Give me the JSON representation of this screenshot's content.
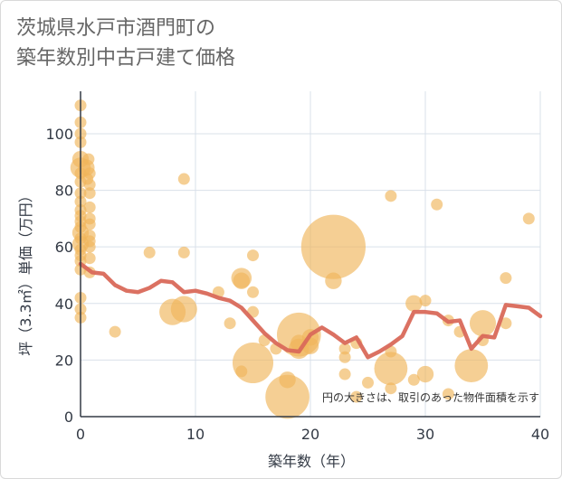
{
  "chart_data": {
    "type": "scatter",
    "title_lines": [
      "茨城県水戸市酒門町の",
      "築年数別中古戸建て価格"
    ],
    "xlabel": "築年数（年）",
    "ylabel": "坪（3.3㎡）単価（万円）",
    "xlim": [
      0,
      40
    ],
    "ylim": [
      0,
      115
    ],
    "xticks": [
      0,
      10,
      20,
      30,
      40
    ],
    "yticks": [
      0,
      20,
      40,
      60,
      80,
      100
    ],
    "note": "円の大きさは、取引のあった物件面積を示す",
    "colors": {
      "bubble": "#f0b55a",
      "line": "#d9695a",
      "grid": "#d9e0ea",
      "axis": "#333a45"
    },
    "scatter": [
      {
        "x": 0,
        "y": 110,
        "s": 1
      },
      {
        "x": 0,
        "y": 104,
        "s": 1
      },
      {
        "x": 0,
        "y": 100,
        "s": 1
      },
      {
        "x": 0,
        "y": 97,
        "s": 1
      },
      {
        "x": 0,
        "y": 91,
        "s": 2
      },
      {
        "x": 0,
        "y": 88,
        "s": 3
      },
      {
        "x": 0,
        "y": 86,
        "s": 1
      },
      {
        "x": 0,
        "y": 83,
        "s": 1
      },
      {
        "x": 0,
        "y": 79,
        "s": 1
      },
      {
        "x": 0,
        "y": 76,
        "s": 1
      },
      {
        "x": 0,
        "y": 73,
        "s": 1
      },
      {
        "x": 0,
        "y": 71,
        "s": 1
      },
      {
        "x": 0,
        "y": 69,
        "s": 1
      },
      {
        "x": 0,
        "y": 67,
        "s": 1
      },
      {
        "x": 0,
        "y": 65,
        "s": 2
      },
      {
        "x": 0,
        "y": 63,
        "s": 1
      },
      {
        "x": 0,
        "y": 61,
        "s": 2
      },
      {
        "x": 0,
        "y": 59,
        "s": 1
      },
      {
        "x": 0,
        "y": 57,
        "s": 1
      },
      {
        "x": 0,
        "y": 55,
        "s": 1
      },
      {
        "x": 0,
        "y": 52,
        "s": 1
      },
      {
        "x": 0,
        "y": 42,
        "s": 1
      },
      {
        "x": 0,
        "y": 38,
        "s": 1
      },
      {
        "x": 0,
        "y": 35,
        "s": 1
      },
      {
        "x": 0.5,
        "y": 88,
        "s": 2
      },
      {
        "x": 0.6,
        "y": 84,
        "s": 1
      },
      {
        "x": 0.7,
        "y": 91,
        "s": 1
      },
      {
        "x": 0.8,
        "y": 86,
        "s": 1
      },
      {
        "x": 0.8,
        "y": 82,
        "s": 1
      },
      {
        "x": 0.8,
        "y": 79,
        "s": 1
      },
      {
        "x": 0.8,
        "y": 74,
        "s": 1
      },
      {
        "x": 0.8,
        "y": 70,
        "s": 1
      },
      {
        "x": 0.8,
        "y": 68,
        "s": 1
      },
      {
        "x": 0.8,
        "y": 64,
        "s": 1
      },
      {
        "x": 0.8,
        "y": 62,
        "s": 1
      },
      {
        "x": 0.8,
        "y": 60,
        "s": 1
      },
      {
        "x": 0.8,
        "y": 56,
        "s": 1
      },
      {
        "x": 0.8,
        "y": 51,
        "s": 1
      },
      {
        "x": 3,
        "y": 30,
        "s": 1
      },
      {
        "x": 6,
        "y": 58,
        "s": 1
      },
      {
        "x": 8,
        "y": 37,
        "s": 5
      },
      {
        "x": 9,
        "y": 38,
        "s": 5
      },
      {
        "x": 9,
        "y": 84,
        "s": 1
      },
      {
        "x": 9,
        "y": 58,
        "s": 1
      },
      {
        "x": 12,
        "y": 44,
        "s": 1
      },
      {
        "x": 13,
        "y": 33,
        "s": 1
      },
      {
        "x": 14,
        "y": 49,
        "s": 3
      },
      {
        "x": 14,
        "y": 48,
        "s": 2
      },
      {
        "x": 14,
        "y": 16,
        "s": 1
      },
      {
        "x": 15,
        "y": 57,
        "s": 1
      },
      {
        "x": 15,
        "y": 44,
        "s": 1
      },
      {
        "x": 15,
        "y": 37,
        "s": 1
      },
      {
        "x": 15,
        "y": 19,
        "s": 12
      },
      {
        "x": 16,
        "y": 27,
        "s": 1
      },
      {
        "x": 17,
        "y": 24,
        "s": 1
      },
      {
        "x": 18,
        "y": 13,
        "s": 2
      },
      {
        "x": 18,
        "y": 7,
        "s": 14
      },
      {
        "x": 19,
        "y": 29,
        "s": 14
      },
      {
        "x": 19,
        "y": 24,
        "s": 3
      },
      {
        "x": 19,
        "y": 26,
        "s": 2
      },
      {
        "x": 20,
        "y": 25,
        "s": 2
      },
      {
        "x": 20,
        "y": 28,
        "s": 2
      },
      {
        "x": 22,
        "y": 60,
        "s": 30
      },
      {
        "x": 22,
        "y": 48,
        "s": 2
      },
      {
        "x": 23,
        "y": 24,
        "s": 1
      },
      {
        "x": 23,
        "y": 21,
        "s": 1
      },
      {
        "x": 23,
        "y": 15,
        "s": 1
      },
      {
        "x": 24,
        "y": 26,
        "s": 1
      },
      {
        "x": 24,
        "y": 7,
        "s": 1
      },
      {
        "x": 25,
        "y": 12,
        "s": 1
      },
      {
        "x": 27,
        "y": 78,
        "s": 1
      },
      {
        "x": 27,
        "y": 23,
        "s": 1
      },
      {
        "x": 27,
        "y": 17,
        "s": 8
      },
      {
        "x": 27,
        "y": 10,
        "s": 1
      },
      {
        "x": 29,
        "y": 40,
        "s": 2
      },
      {
        "x": 29,
        "y": 13,
        "s": 1
      },
      {
        "x": 30,
        "y": 41,
        "s": 1
      },
      {
        "x": 30,
        "y": 15,
        "s": 2
      },
      {
        "x": 31,
        "y": 75,
        "s": 1
      },
      {
        "x": 32,
        "y": 34,
        "s": 1
      },
      {
        "x": 32,
        "y": 8,
        "s": 1
      },
      {
        "x": 33,
        "y": 30,
        "s": 1
      },
      {
        "x": 34,
        "y": 18,
        "s": 8
      },
      {
        "x": 35,
        "y": 33,
        "s": 5
      },
      {
        "x": 35,
        "y": 27,
        "s": 1
      },
      {
        "x": 37,
        "y": 49,
        "s": 1
      },
      {
        "x": 37,
        "y": 33,
        "s": 1
      },
      {
        "x": 39,
        "y": 70,
        "s": 1
      }
    ],
    "trend_line": {
      "x": [
        0,
        1,
        2,
        3,
        4,
        5,
        6,
        7,
        8,
        9,
        10,
        11,
        12,
        13,
        14,
        15,
        16,
        17,
        18,
        19,
        20,
        21,
        22,
        23,
        24,
        25,
        26,
        27,
        28,
        29,
        30,
        31,
        32,
        33,
        34,
        35,
        36,
        37,
        38,
        39,
        40
      ],
      "y": [
        54,
        51,
        50.5,
        46.5,
        44.5,
        44,
        45.5,
        48,
        47.5,
        44,
        44.5,
        43.5,
        42,
        41,
        38.5,
        34,
        29.5,
        26,
        23.5,
        23,
        29,
        31.5,
        29,
        26,
        28,
        21,
        23,
        25.5,
        28.5,
        37,
        37,
        36.5,
        33.5,
        34,
        24,
        28.5,
        28,
        39.5,
        39,
        38.5,
        35.5
      ]
    }
  }
}
